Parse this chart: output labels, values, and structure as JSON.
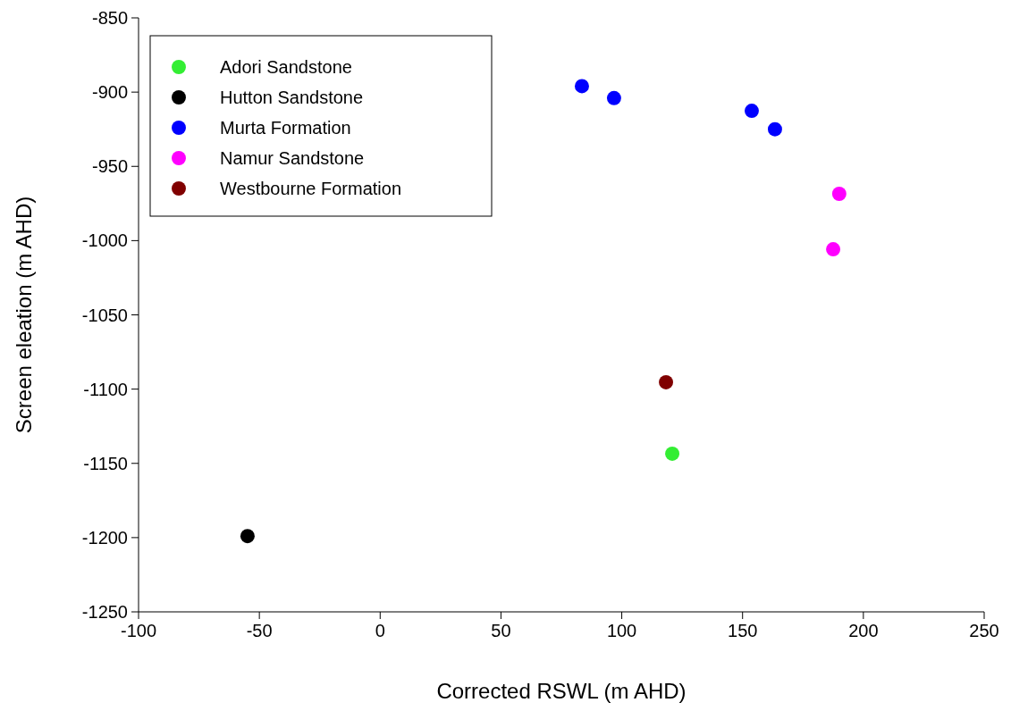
{
  "chart_data": {
    "type": "scatter",
    "xlabel": "Corrected RSWL (m AHD)",
    "ylabel": "Screen eleation (m AHD)",
    "xlim": [
      -100,
      250
    ],
    "xticks": [
      -100,
      -50,
      0,
      50,
      100,
      150,
      200,
      250
    ],
    "ylim": [
      -1250,
      -850
    ],
    "yticks": [
      -1250,
      -1200,
      -1150,
      -1100,
      -1050,
      -1000,
      -950,
      -900,
      -850
    ],
    "grid": false,
    "legend": "top left",
    "marker": "circle",
    "series": [
      {
        "name": "Adori Sandstone",
        "color": "#33ee33",
        "x": [
          120.9
        ],
        "values": [
          -1143.5
        ]
      },
      {
        "name": "Hutton Sandstone",
        "color": "#000000",
        "x": [
          -54.9
        ],
        "values": [
          -1199
        ]
      },
      {
        "name": "Murta Formation",
        "color": "#0000ff",
        "x": [
          83.5,
          96.8,
          153.8,
          163.4
        ],
        "values": [
          -896,
          -904,
          -912.6,
          -925
        ]
      },
      {
        "name": "Namur Sandstone",
        "color": "#ff00ff",
        "x": [
          190,
          187.5
        ],
        "values": [
          -968.5,
          -1005.8
        ]
      },
      {
        "name": "Westbourne Formation",
        "color": "#800000",
        "x": [
          118.3
        ],
        "values": [
          -1095.4
        ]
      }
    ]
  }
}
